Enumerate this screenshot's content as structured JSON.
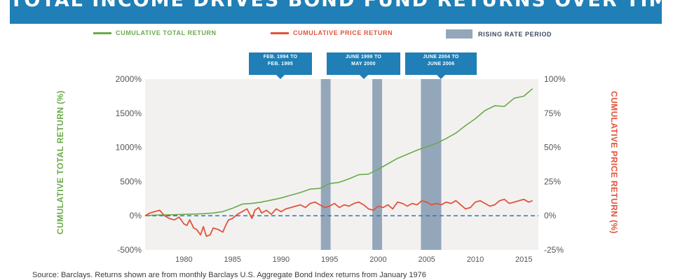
{
  "title": "TOTAL INCOME DRIVES BOND FUND RETURNS OVER TIME",
  "legend": {
    "total": "CUMULATIVE TOTAL RETURN",
    "price": "CUMULATIVE PRICE RETURN",
    "rate": "RISING RATE PERIOD"
  },
  "callouts": [
    "FEB. 1994 TO\nFEB. 1995",
    "JUNE 1999 TO\nMAY 2000",
    "JUNE 2004 TO\nJUNE 2006"
  ],
  "source": "Source: Barclays. Returns shown are from monthly Barclays U.S. Aggregate Bond Index returns from January 1976",
  "colors": {
    "total": "#6aaa4b",
    "price": "#e2533b",
    "rate": "#94a7ba",
    "banner": "#1f7fb6",
    "plot_bg": "#f2f1f0",
    "zero_line": "#2a79b3"
  },
  "chart_data": {
    "type": "line",
    "xlabel": "",
    "ylabel": "CUMULATIVE TOTAL RETURN (%)",
    "y2label": "CUMULATIVE PRICE RETURN (%)",
    "xlim": [
      1976,
      2016.5
    ],
    "ylim": [
      -500,
      2000
    ],
    "y2lim": [
      -25,
      100
    ],
    "x_ticks": [
      1980,
      1985,
      1990,
      1995,
      2000,
      2005,
      2010,
      2015
    ],
    "y_ticks": [
      {
        "v": -500,
        "label": "-500%"
      },
      {
        "v": 0,
        "label": "0%"
      },
      {
        "v": 500,
        "label": "500%"
      },
      {
        "v": 1000,
        "label": "1000%"
      },
      {
        "v": 1500,
        "label": "1500%"
      },
      {
        "v": 2000,
        "label": "2000%"
      }
    ],
    "y2_ticks": [
      {
        "v": -25,
        "label": "-25%"
      },
      {
        "v": 0,
        "label": "0%"
      },
      {
        "v": 25,
        "label": "25%"
      },
      {
        "v": 50,
        "label": "50%"
      },
      {
        "v": 75,
        "label": "75%"
      },
      {
        "v": 100,
        "label": "100%"
      }
    ],
    "rising_rate_periods": [
      {
        "start": 1994.1,
        "end": 1995.1
      },
      {
        "start": 1999.4,
        "end": 2000.4
      },
      {
        "start": 2004.4,
        "end": 2006.5
      }
    ],
    "series": [
      {
        "name": "CUMULATIVE TOTAL RETURN",
        "axis": "left",
        "x": [
          1976,
          1977,
          1978,
          1979,
          1980,
          1981,
          1982,
          1983,
          1984,
          1985,
          1986,
          1987,
          1988,
          1989,
          1990,
          1991,
          1992,
          1993,
          1994,
          1995,
          1996,
          1997,
          1998,
          1999,
          2000,
          2001,
          2002,
          2003,
          2004,
          2005,
          2006,
          2007,
          2008,
          2009,
          2010,
          2011,
          2012,
          2013,
          2014,
          2015,
          2015.9
        ],
        "y": [
          0,
          10,
          12,
          15,
          20,
          25,
          30,
          40,
          60,
          110,
          170,
          180,
          200,
          230,
          260,
          300,
          340,
          390,
          400,
          470,
          490,
          540,
          600,
          610,
          680,
          760,
          840,
          900,
          960,
          1010,
          1060,
          1130,
          1210,
          1320,
          1420,
          1540,
          1610,
          1600,
          1720,
          1750,
          1860
        ]
      },
      {
        "name": "CUMULATIVE PRICE RETURN",
        "axis": "right",
        "x": [
          1976,
          1976.5,
          1977,
          1977.5,
          1978,
          1978.5,
          1979,
          1979.5,
          1980,
          1980.3,
          1980.6,
          1981,
          1981.3,
          1981.7,
          1982,
          1982.3,
          1982.7,
          1983,
          1983.5,
          1984,
          1984.3,
          1984.6,
          1985,
          1985.5,
          1986,
          1986.5,
          1987,
          1987.3,
          1987.7,
          1988,
          1988.5,
          1989,
          1989.5,
          1990,
          1990.5,
          1991,
          1991.5,
          1992,
          1992.5,
          1993,
          1993.5,
          1994,
          1994.5,
          1995,
          1995.5,
          1996,
          1996.5,
          1997,
          1997.5,
          1998,
          1998.5,
          1999,
          1999.5,
          2000,
          2000.5,
          2001,
          2001.5,
          2002,
          2002.5,
          2003,
          2003.5,
          2004,
          2004.5,
          2005,
          2005.5,
          2006,
          2006.5,
          2007,
          2007.5,
          2008,
          2008.5,
          2009,
          2009.5,
          2010,
          2010.5,
          2011,
          2011.5,
          2012,
          2012.5,
          2013,
          2013.5,
          2014,
          2014.5,
          2015,
          2015.5,
          2015.9
        ],
        "y": [
          0,
          2,
          3,
          4,
          0,
          -2,
          -3,
          -1,
          -6,
          -7,
          -3,
          -9,
          -10,
          -14,
          -8,
          -15,
          -14,
          -9,
          -10,
          -12,
          -7,
          -3,
          -2,
          1,
          3,
          5,
          -2,
          4,
          6,
          2,
          4,
          1,
          5,
          3,
          5,
          6,
          7,
          8,
          6,
          9,
          10,
          8,
          6,
          7,
          9,
          6,
          8,
          7,
          9,
          10,
          8,
          5,
          4,
          7,
          6,
          8,
          5,
          10,
          9,
          7,
          9,
          8,
          11,
          10,
          8,
          9,
          8,
          10,
          9,
          11,
          8,
          5,
          6,
          10,
          11,
          9,
          7,
          8,
          11,
          12,
          9,
          10,
          11,
          12,
          10,
          11
        ]
      }
    ]
  }
}
